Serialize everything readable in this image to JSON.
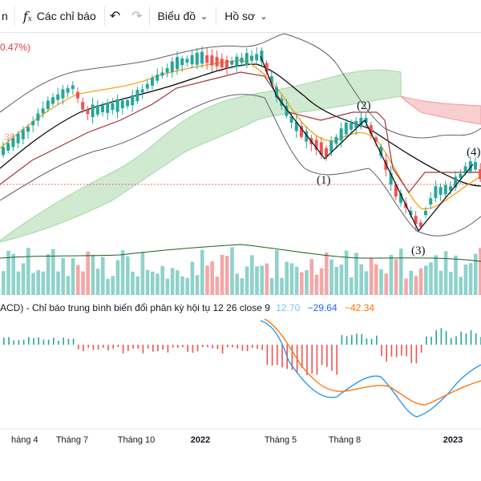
{
  "toolbar": {
    "left_clip": "n",
    "indicators_label": "Các chỉ báo",
    "chart_label": "Biểu đồ",
    "profile_label": "Hồ sơ"
  },
  "legend": {
    "change_pct": "0.47%)",
    "price_clip": ".36"
  },
  "waves": [
    "(1)",
    "(2)",
    "(3)",
    "(4)"
  ],
  "macd": {
    "title": "ACD) - Chỉ báo trung bình biến đổi phân kỳ hội tụ 12 26 close 9",
    "hist": "12.70",
    "macd": "−29.64",
    "signal": "−42.34"
  },
  "colors": {
    "up": "#26a69a",
    "down": "#ef5350",
    "cloud_up": "#c8e6c9",
    "cloud_down": "#f8c9cc",
    "bollinger": "#5d6068",
    "ema_orange": "#ff9800",
    "sma_black": "#000000",
    "kijun_red": "#a3343a",
    "macd_line": "#2196f3",
    "signal_line": "#ff6d00"
  },
  "chart_data": {
    "type": "candlestick",
    "x_ticks": [
      "háng 4",
      "Tháng 7",
      "Tháng 10",
      "2022",
      "Tháng 5",
      "Tháng 8",
      "2023"
    ],
    "bold_ticks": [
      "2022",
      "2023"
    ]
  }
}
